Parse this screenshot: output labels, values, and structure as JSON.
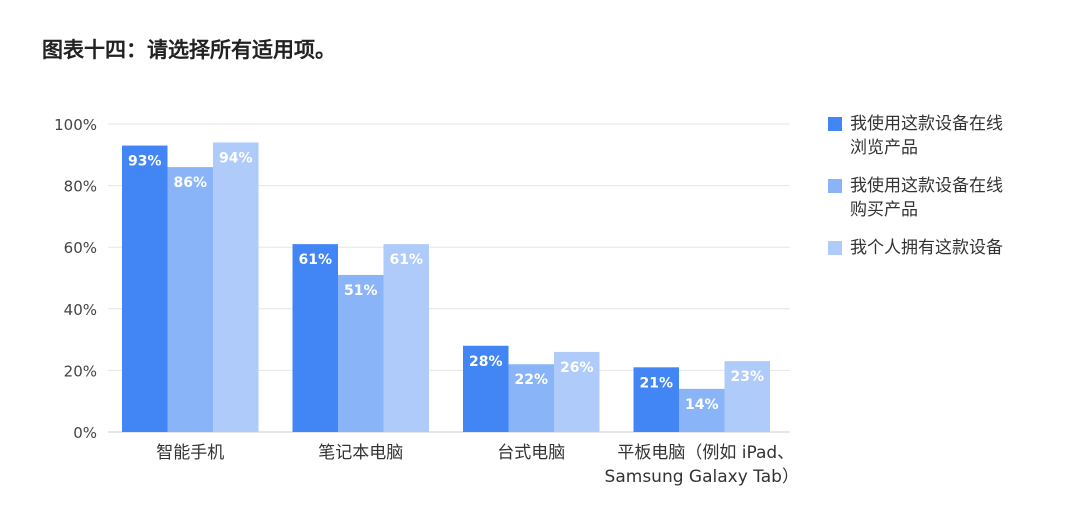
{
  "title": "图表十四：请选择所有适用项。",
  "colors": {
    "grid": "#e6e6e6",
    "axis": "#cccccc",
    "tick_text": "#444444",
    "label_text": "#ffffff"
  },
  "chart_data": {
    "type": "bar",
    "categories": [
      "智能手机",
      "笔记本电脑",
      "台式电脑",
      "平板电脑（例如 iPad、Samsung Galaxy Tab）"
    ],
    "category_lines": [
      [
        "智能手机"
      ],
      [
        "笔记本电脑"
      ],
      [
        "台式电脑"
      ],
      [
        "平板电脑（例如 iPad、",
        "Samsung Galaxy Tab）"
      ]
    ],
    "series": [
      {
        "name": "我使用这款设备在线浏览产品",
        "name_lines": [
          "我使用这款设备在线",
          "浏览产品"
        ],
        "color": "#4285f4",
        "values": [
          93,
          61,
          28,
          21
        ],
        "labels": [
          "93%",
          "61%",
          "28%",
          "21%"
        ]
      },
      {
        "name": "我使用这款设备在线购买产品",
        "name_lines": [
          "我使用这款设备在线",
          "购买产品"
        ],
        "color": "#8ab4f8",
        "values": [
          86,
          51,
          22,
          14
        ],
        "labels": [
          "86%",
          "51%",
          "22%",
          "14%"
        ]
      },
      {
        "name": "我个人拥有这款设备",
        "name_lines": [
          "我个人拥有这款设备"
        ],
        "color": "#aecbfa",
        "values": [
          94,
          61,
          26,
          23
        ],
        "labels": [
          "94%",
          "61%",
          "26%",
          "23%"
        ]
      }
    ],
    "ylim": [
      0,
      100
    ],
    "yticks": [
      0,
      20,
      40,
      60,
      80,
      100
    ],
    "ytick_labels": [
      "0%",
      "20%",
      "40%",
      "60%",
      "80%",
      "100%"
    ],
    "grid": true,
    "legend_position": "right"
  }
}
